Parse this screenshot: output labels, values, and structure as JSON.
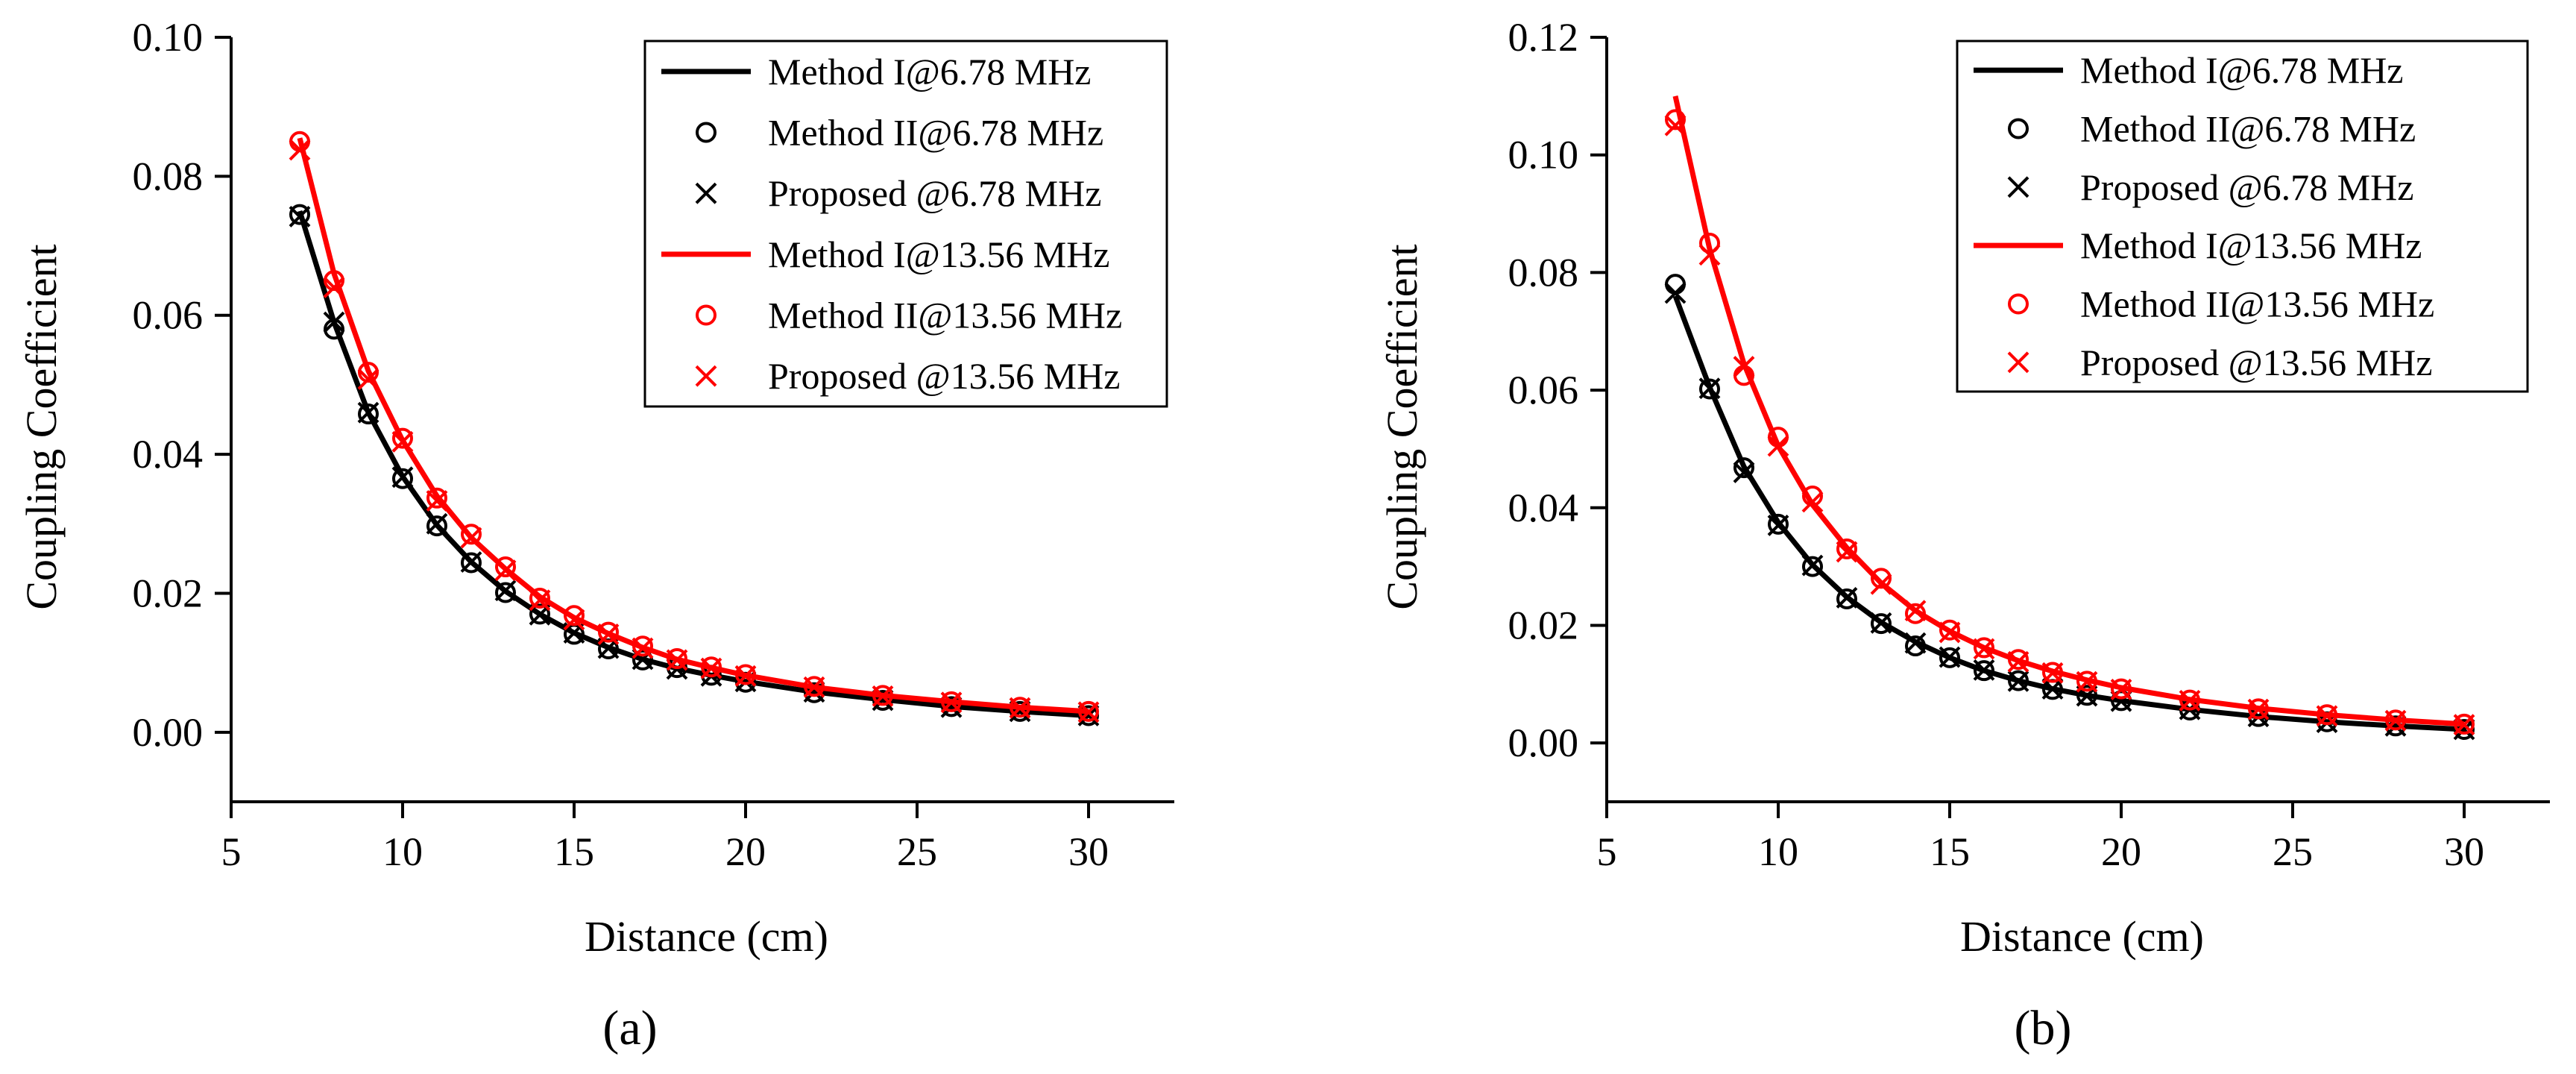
{
  "chart_data": [
    {
      "type": "line",
      "panel_label": "(a)",
      "xlabel": "Distance (cm)",
      "ylabel": "Coupling Coefficient",
      "xlim": [
        5,
        32.5
      ],
      "ylim": [
        -0.01,
        0.1
      ],
      "xticks": [
        "5",
        "10",
        "15",
        "20",
        "25",
        "30"
      ],
      "yticks": [
        "0.00",
        "0.02",
        "0.04",
        "0.06",
        "0.08",
        "0.10"
      ],
      "legend_position": "top-right",
      "x": [
        7,
        8,
        9,
        10,
        11,
        12,
        13,
        14,
        15,
        16,
        17,
        18,
        19,
        20,
        22,
        24,
        26,
        28,
        30
      ],
      "series": [
        {
          "name": "Method I@6.78 MHz",
          "style": "line",
          "color": "#000000",
          "values": [
            0.075,
            0.059,
            0.046,
            0.0368,
            0.0298,
            0.0245,
            0.0203,
            0.017,
            0.0143,
            0.0122,
            0.0105,
            0.0092,
            0.0082,
            0.0073,
            0.0058,
            0.0047,
            0.0037,
            0.003,
            0.0024
          ]
        },
        {
          "name": "Method II@6.78 MHz",
          "style": "circle",
          "color": "#000000",
          "values": [
            0.0745,
            0.058,
            0.0458,
            0.0365,
            0.0297,
            0.0244,
            0.0201,
            0.017,
            0.0141,
            0.012,
            0.0104,
            0.0093,
            0.0082,
            0.0072,
            0.0057,
            0.0046,
            0.0037,
            0.003,
            0.0024
          ]
        },
        {
          "name": "Proposed @6.78 MHz",
          "style": "cross",
          "color": "#000000",
          "values": [
            0.0742,
            0.059,
            0.046,
            0.0367,
            0.03,
            0.0245,
            0.0204,
            0.0169,
            0.0143,
            0.0121,
            0.0105,
            0.0091,
            0.0081,
            0.0073,
            0.0058,
            0.0046,
            0.0036,
            0.003,
            0.0024
          ]
        },
        {
          "name": "Method I@13.56 MHz",
          "style": "line",
          "color": "#ff0000",
          "values": [
            0.0855,
            0.066,
            0.052,
            0.042,
            0.034,
            0.028,
            0.0235,
            0.0195,
            0.0165,
            0.0142,
            0.0122,
            0.0105,
            0.0093,
            0.0082,
            0.0065,
            0.0053,
            0.0044,
            0.0036,
            0.003
          ]
        },
        {
          "name": "Method II@13.56 MHz",
          "style": "circle",
          "color": "#ff0000",
          "values": [
            0.085,
            0.065,
            0.0518,
            0.0423,
            0.0337,
            0.0285,
            0.0238,
            0.0193,
            0.0168,
            0.0144,
            0.0124,
            0.0106,
            0.0094,
            0.0083,
            0.0066,
            0.0053,
            0.0044,
            0.0036,
            0.003
          ]
        },
        {
          "name": "Proposed @13.56 MHz",
          "style": "cross",
          "color": "#ff0000",
          "values": [
            0.0838,
            0.064,
            0.0508,
            0.0418,
            0.0333,
            0.028,
            0.0233,
            0.019,
            0.0162,
            0.0141,
            0.0121,
            0.0104,
            0.0092,
            0.0081,
            0.0065,
            0.0052,
            0.0043,
            0.0035,
            0.0029
          ]
        }
      ]
    },
    {
      "type": "line",
      "panel_label": "(b)",
      "xlabel": "Distance (cm)",
      "ylabel": "Coupling Coefficient",
      "xlim": [
        5,
        32.5
      ],
      "ylim": [
        -0.01,
        0.12
      ],
      "xticks": [
        "5",
        "10",
        "15",
        "20",
        "25",
        "30"
      ],
      "yticks": [
        "0.00",
        "0.02",
        "0.04",
        "0.06",
        "0.08",
        "0.10",
        "0.12"
      ],
      "legend_position": "top-right",
      "x": [
        7,
        8,
        9,
        10,
        11,
        12,
        13,
        14,
        15,
        16,
        17,
        18,
        19,
        20,
        22,
        24,
        26,
        28,
        30
      ],
      "series": [
        {
          "name": "Method I@6.78 MHz",
          "style": "line",
          "color": "#000000",
          "values": [
            0.076,
            0.0605,
            0.047,
            0.0375,
            0.0303,
            0.0248,
            0.0205,
            0.0172,
            0.0145,
            0.0123,
            0.0106,
            0.0092,
            0.0081,
            0.0072,
            0.0057,
            0.0045,
            0.0036,
            0.0029,
            0.0023
          ]
        },
        {
          "name": "Method II@6.78 MHz",
          "style": "circle",
          "color": "#000000",
          "values": [
            0.078,
            0.0602,
            0.0468,
            0.0372,
            0.03,
            0.0245,
            0.0203,
            0.0165,
            0.0145,
            0.0123,
            0.0106,
            0.0091,
            0.0081,
            0.0072,
            0.0056,
            0.0045,
            0.0036,
            0.0029,
            0.0023
          ]
        },
        {
          "name": "Proposed @6.78 MHz",
          "style": "cross",
          "color": "#000000",
          "values": [
            0.0765,
            0.0603,
            0.046,
            0.037,
            0.0302,
            0.0247,
            0.0204,
            0.017,
            0.0146,
            0.0124,
            0.0105,
            0.0092,
            0.008,
            0.0071,
            0.0057,
            0.0045,
            0.0035,
            0.0029,
            0.0023
          ]
        },
        {
          "name": "Method I@13.56 MHz",
          "style": "line",
          "color": "#ff0000",
          "values": [
            0.11,
            0.084,
            0.0645,
            0.0505,
            0.0405,
            0.0332,
            0.0272,
            0.0225,
            0.019,
            0.0162,
            0.014,
            0.0122,
            0.0107,
            0.0094,
            0.0074,
            0.0059,
            0.0048,
            0.0039,
            0.0032
          ]
        },
        {
          "name": "Method II@13.56 MHz",
          "style": "circle",
          "color": "#ff0000",
          "values": [
            0.106,
            0.085,
            0.0625,
            0.052,
            0.042,
            0.033,
            0.028,
            0.022,
            0.0192,
            0.0162,
            0.0142,
            0.012,
            0.0105,
            0.0092,
            0.0073,
            0.0058,
            0.0048,
            0.0039,
            0.0032
          ]
        },
        {
          "name": "Proposed @13.56 MHz",
          "style": "cross",
          "color": "#ff0000",
          "values": [
            0.105,
            0.083,
            0.064,
            0.0505,
            0.041,
            0.0325,
            0.027,
            0.0225,
            0.0188,
            0.016,
            0.0138,
            0.0119,
            0.0104,
            0.0091,
            0.0072,
            0.0057,
            0.0046,
            0.0038,
            0.0031
          ]
        }
      ]
    }
  ]
}
